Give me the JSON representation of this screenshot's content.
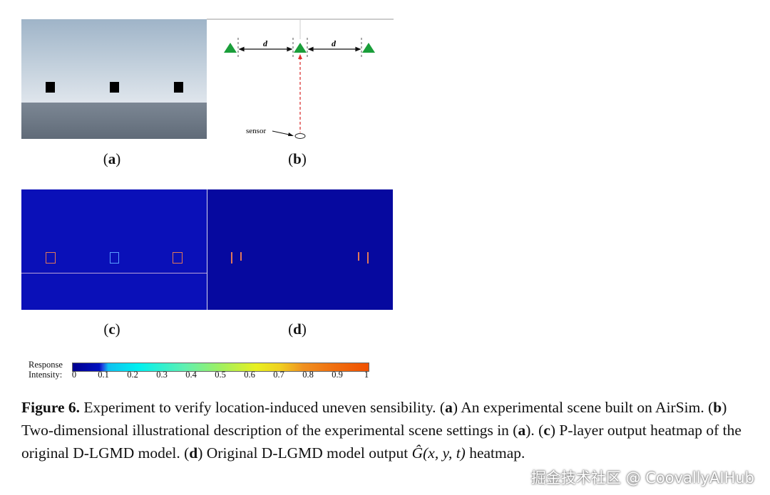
{
  "figure": {
    "panels": [
      {
        "label": "a"
      },
      {
        "label": "b"
      },
      {
        "label": "c"
      },
      {
        "label": "d"
      }
    ],
    "diagram": {
      "distance_label": "d",
      "sensor_label": "sensor",
      "marker_color": "#1a9e3a",
      "ray_color": "#e05050"
    },
    "colorbar": {
      "title_line1": "Response",
      "title_line2": "Intensity:",
      "ticks": [
        "0",
        "0.1",
        "0.2",
        "0.3",
        "0.4",
        "0.5",
        "0.6",
        "0.7",
        "0.8",
        "0.9",
        "1"
      ],
      "colormap": "jet"
    },
    "caption": {
      "figure_label": "Figure 6.",
      "text1": " Experiment to verify location-induced uneven sensibility. (",
      "a1": "a",
      "text2": ") An experimental scene built on AirSim. (",
      "b1": "b",
      "text3": ") Two-dimensional illustrational description of the experimental scene settings in (",
      "a2": "a",
      "text4": "). (",
      "c1": "c",
      "text5": ") P-layer output heatmap of the original D-LGMD model. (",
      "d1": "d",
      "text6": ") Original D-LGMD model output ",
      "math": "Ĝ(x, y, t)",
      "text7": " heatmap."
    }
  },
  "watermark": "掘金技术社区 @ CoovallyAIHub"
}
